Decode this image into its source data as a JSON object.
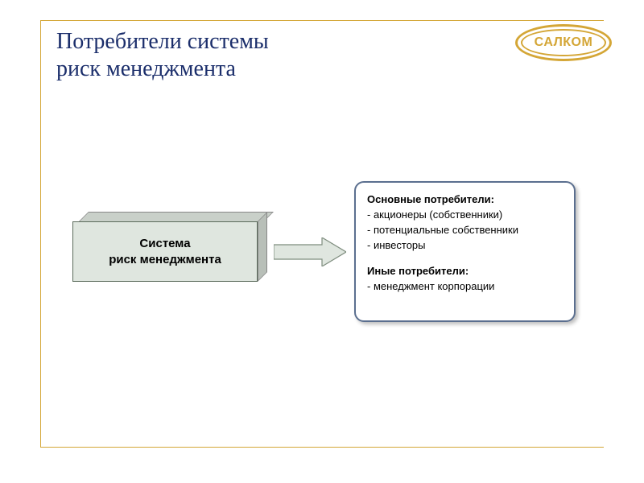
{
  "colors": {
    "frame": "#d4a636",
    "title": "#1b2e6b",
    "logo_border": "#d4a636",
    "logo_text": "#d4a636",
    "box3d_front_fill": "#dfe6df",
    "box3d_top_fill": "#c9d0c9",
    "box3d_side_fill": "#b8bfb8",
    "arrow_fill": "#dfe6df",
    "arrow_stroke": "#7e8d7e",
    "infobox_border": "#5b6f8f"
  },
  "title": "Потребители системы\nриск менеджмента",
  "logo": {
    "text": "САЛКОМ"
  },
  "box3d": {
    "line1": "Система",
    "line2": "риск менеджмента"
  },
  "infobox": {
    "group1": {
      "heading": "Основные потребители:",
      "items": [
        "акционеры (собственники)",
        "потенциальные собственники",
        "инвесторы"
      ]
    },
    "group2": {
      "heading": "Иные потребители:",
      "items": [
        "менеджмент корпорации"
      ]
    }
  }
}
